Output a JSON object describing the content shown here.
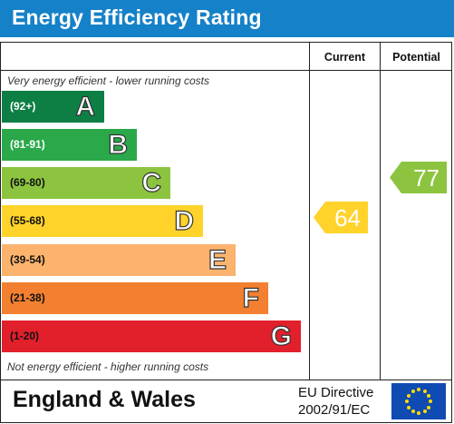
{
  "header": {
    "title": "Energy Efficiency Rating"
  },
  "columns": {
    "current": "Current",
    "potential": "Potential"
  },
  "notes": {
    "top": "Very energy efficient - lower running costs",
    "bottom": "Not energy efficient - higher running costs"
  },
  "bands": [
    {
      "range": "(92+)",
      "letter": "A",
      "color": "#0d7f44",
      "range_color": "#ffffff"
    },
    {
      "range": "(81-91)",
      "letter": "B",
      "color": "#2aa84a",
      "range_color": "#ffffff"
    },
    {
      "range": "(69-80)",
      "letter": "C",
      "color": "#8cc43f",
      "range_color": "#111111"
    },
    {
      "range": "(55-68)",
      "letter": "D",
      "color": "#ffd32a",
      "range_color": "#111111"
    },
    {
      "range": "(39-54)",
      "letter": "E",
      "color": "#fbb36d",
      "range_color": "#111111"
    },
    {
      "range": "(21-38)",
      "letter": "F",
      "color": "#f28030",
      "range_color": "#111111"
    },
    {
      "range": "(1-20)",
      "letter": "G",
      "color": "#e2202c",
      "range_color": "#111111"
    }
  ],
  "ratings": {
    "current": {
      "value": "64",
      "band": "D",
      "color": "#ffd32a"
    },
    "potential": {
      "value": "77",
      "band": "C",
      "color": "#8cc43f"
    }
  },
  "footer": {
    "region": "England & Wales",
    "directive_line1": "EU Directive",
    "directive_line2": "2002/91/EC",
    "flag_color": "#0f4bb3",
    "star_color": "#ffdc00"
  }
}
